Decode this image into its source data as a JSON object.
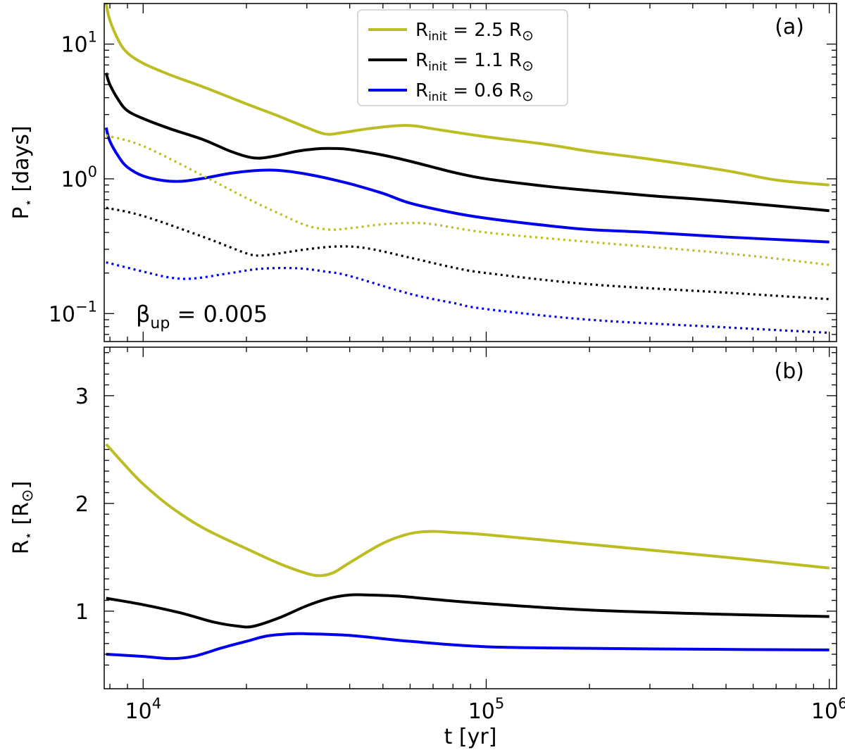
{
  "chart_data": [
    {
      "panel": "(a)",
      "type": "line",
      "xscale": "log",
      "yscale": "log",
      "xlim": [
        7700,
        1050000
      ],
      "ylim": [
        0.062,
        20
      ],
      "xlabel": "",
      "ylabel_main": "P",
      "ylabel_sub": "⋆",
      "ylabel_rest": " [days]",
      "yticks": [
        {
          "value": 0.1,
          "base": "10",
          "exp": "−1"
        },
        {
          "value": 1,
          "base": "10",
          "exp": "0"
        },
        {
          "value": 10,
          "base": "10",
          "exp": "1"
        }
      ],
      "annotation": {
        "main": "β",
        "sub": "up",
        "rest": " = 0.005"
      },
      "legend": {
        "position": "top-center",
        "entries": [
          {
            "main": "R",
            "sub": "init",
            "rest": " = 2.5 R",
            "sym": "⊙",
            "color": "#bcbd22"
          },
          {
            "main": "R",
            "sub": "init",
            "rest": " = 1.1 R",
            "sym": "⊙",
            "color": "#000000"
          },
          {
            "main": "R",
            "sub": "init",
            "rest": " = 0.6 R",
            "sym": "⊙",
            "color": "#0000ee"
          }
        ]
      },
      "series": [
        {
          "name": "R_init = 2.5 R_sun",
          "style": "solid",
          "color": "#bcbd22",
          "x": [
            7800,
            8000,
            8500,
            9000,
            10000,
            12000,
            15000,
            20000,
            25000,
            30000,
            34000,
            38000,
            45000,
            55000,
            62000,
            70000,
            100000,
            150000,
            200000,
            300000,
            500000,
            700000,
            1000000
          ],
          "y": [
            20,
            15,
            10.5,
            8.6,
            7.2,
            5.9,
            4.8,
            3.6,
            2.9,
            2.4,
            2.15,
            2.2,
            2.35,
            2.48,
            2.47,
            2.35,
            2.05,
            1.8,
            1.6,
            1.4,
            1.15,
            0.98,
            0.9
          ]
        },
        {
          "name": "R_init = 1.1 R_sun",
          "style": "solid",
          "color": "#000000",
          "x": [
            7800,
            8000,
            8500,
            9000,
            10000,
            12000,
            15000,
            18000,
            21000,
            24000,
            28000,
            32000,
            36000,
            40000,
            50000,
            60000,
            80000,
            100000,
            150000,
            200000,
            300000,
            500000,
            1000000
          ],
          "y": [
            6.1,
            5.0,
            3.8,
            3.2,
            2.8,
            2.35,
            1.95,
            1.6,
            1.43,
            1.47,
            1.6,
            1.67,
            1.68,
            1.65,
            1.5,
            1.35,
            1.12,
            1.0,
            0.88,
            0.82,
            0.75,
            0.68,
            0.58
          ]
        },
        {
          "name": "R_init = 0.6 R_sun",
          "style": "solid",
          "color": "#0000ee",
          "x": [
            7800,
            8000,
            8500,
            9000,
            10000,
            11500,
            13000,
            15000,
            18000,
            21000,
            24000,
            27000,
            32000,
            40000,
            50000,
            60000,
            80000,
            100000,
            150000,
            200000,
            300000,
            500000,
            1000000
          ],
          "y": [
            2.4,
            1.9,
            1.45,
            1.22,
            1.05,
            0.97,
            0.96,
            1.01,
            1.1,
            1.15,
            1.16,
            1.13,
            1.05,
            0.92,
            0.78,
            0.66,
            0.56,
            0.51,
            0.45,
            0.42,
            0.4,
            0.37,
            0.34
          ]
        },
        {
          "name": "R_init = 2.5 R_sun (dotted)",
          "style": "dotted",
          "color": "#bcbd22",
          "x": [
            7800,
            10000,
            15000,
            20000,
            25000,
            30000,
            35000,
            40000,
            50000,
            60000,
            70000,
            100000,
            200000,
            500000,
            1000000
          ],
          "y": [
            2.1,
            1.75,
            1.05,
            0.72,
            0.55,
            0.45,
            0.42,
            0.43,
            0.46,
            0.47,
            0.46,
            0.4,
            0.34,
            0.28,
            0.23
          ]
        },
        {
          "name": "R_init = 1.1 R_sun (dotted)",
          "style": "dotted",
          "color": "#000000",
          "x": [
            7800,
            10000,
            15000,
            20000,
            22000,
            25000,
            30000,
            37000,
            45000,
            60000,
            80000,
            100000,
            200000,
            500000,
            1000000
          ],
          "y": [
            0.61,
            0.53,
            0.37,
            0.28,
            0.27,
            0.28,
            0.3,
            0.315,
            0.305,
            0.26,
            0.22,
            0.2,
            0.165,
            0.143,
            0.128
          ]
        },
        {
          "name": "R_init = 0.6 R_sun (dotted)",
          "style": "dotted",
          "color": "#0000ee",
          "x": [
            7800,
            10000,
            12000,
            14000,
            18000,
            22000,
            28000,
            34000,
            40000,
            60000,
            80000,
            100000,
            200000,
            500000,
            1000000
          ],
          "y": [
            0.24,
            0.205,
            0.185,
            0.182,
            0.2,
            0.215,
            0.217,
            0.205,
            0.19,
            0.14,
            0.12,
            0.108,
            0.09,
            0.079,
            0.072
          ]
        }
      ]
    },
    {
      "panel": "(b)",
      "type": "line",
      "xscale": "log",
      "yscale": "linear",
      "xlim": [
        7700,
        1050000
      ],
      "ylim": [
        0.28,
        3.45
      ],
      "xlabel_main": "t",
      "xlabel_rest": " [yr]",
      "ylabel_main": "R",
      "ylabel_sub": "⋆",
      "ylabel_rest": " [R",
      "ylabel_sym": "⊙",
      "ylabel_close": "]",
      "xticks": [
        {
          "value": 10000,
          "base": "10",
          "exp": "4"
        },
        {
          "value": 100000,
          "base": "10",
          "exp": "5"
        },
        {
          "value": 1000000,
          "base": "10",
          "exp": "6"
        }
      ],
      "yticks": [
        {
          "value": 1,
          "label": "1"
        },
        {
          "value": 2,
          "label": "2"
        },
        {
          "value": 3,
          "label": "3"
        }
      ],
      "series": [
        {
          "name": "R_init = 2.5 R_sun",
          "style": "solid",
          "color": "#bcbd22",
          "x": [
            7800,
            9000,
            10000,
            12000,
            15000,
            20000,
            25000,
            30000,
            33000,
            36000,
            40000,
            50000,
            60000,
            70000,
            80000,
            100000,
            200000,
            500000,
            1000000
          ],
          "y": [
            2.55,
            2.33,
            2.18,
            1.97,
            1.77,
            1.58,
            1.44,
            1.35,
            1.33,
            1.36,
            1.45,
            1.63,
            1.72,
            1.74,
            1.73,
            1.71,
            1.62,
            1.5,
            1.4
          ]
        },
        {
          "name": "R_init = 1.1 R_sun",
          "style": "solid",
          "color": "#000000",
          "x": [
            7800,
            10000,
            13000,
            16000,
            19000,
            21000,
            25000,
            30000,
            35000,
            40000,
            45000,
            55000,
            70000,
            100000,
            200000,
            500000,
            1000000
          ],
          "y": [
            1.12,
            1.06,
            0.98,
            0.9,
            0.86,
            0.86,
            0.94,
            1.05,
            1.12,
            1.15,
            1.15,
            1.14,
            1.11,
            1.07,
            1.01,
            0.97,
            0.95
          ]
        },
        {
          "name": "R_init = 0.6 R_sun",
          "style": "solid",
          "color": "#0000ee",
          "x": [
            7800,
            10000,
            12000,
            14000,
            17000,
            20000,
            23000,
            27000,
            30000,
            40000,
            60000,
            100000,
            200000,
            500000,
            1000000
          ],
          "y": [
            0.6,
            0.58,
            0.56,
            0.58,
            0.66,
            0.72,
            0.77,
            0.79,
            0.79,
            0.775,
            0.72,
            0.67,
            0.655,
            0.645,
            0.64
          ]
        }
      ]
    }
  ]
}
